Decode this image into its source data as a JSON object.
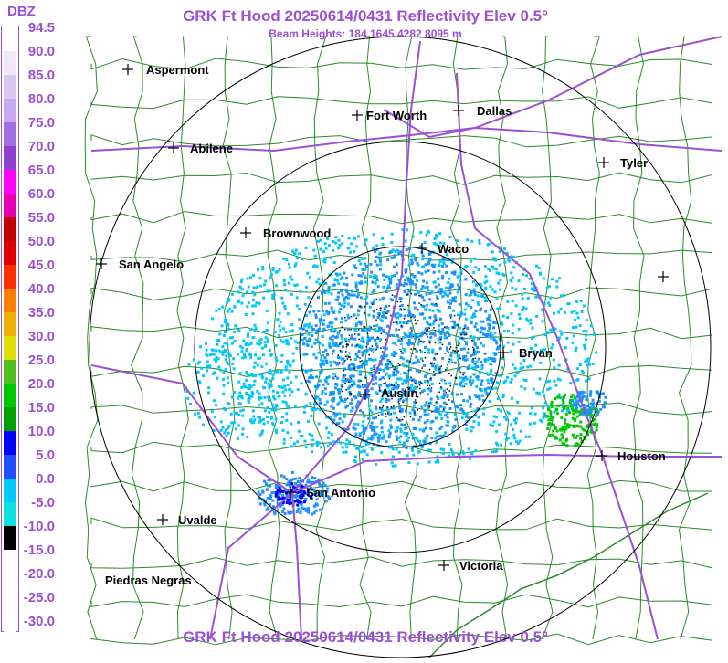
{
  "title": "GRK Ft Hood 20250614/0431 Reflectivity Elev 0.5°",
  "subtitle": "Beam Heights: 184 1645 4282 8095 m",
  "legend": {
    "unit": "DBZ",
    "ticks": [
      "94.5",
      "90.0",
      "85.0",
      "80.0",
      "75.0",
      "70.0",
      "65.0",
      "60.0",
      "55.0",
      "50.0",
      "45.0",
      "40.0",
      "35.0",
      "30.0",
      "25.0",
      "20.0",
      "15.0",
      "10.0",
      "5.0",
      "0.0",
      "-5.0",
      "-10.0",
      "-15.0",
      "-20.0",
      "-25.0",
      "-30.0"
    ],
    "colors": [
      "#ffffff",
      "#f0e8f8",
      "#d8c8f0",
      "#c8a8f0",
      "#a070e0",
      "#9040d0",
      "#ff00ff",
      "#e000b0",
      "#c00000",
      "#e00000",
      "#ff3000",
      "#ff8000",
      "#f0b000",
      "#e0e000",
      "#50c020",
      "#00c800",
      "#00a000",
      "#0000ff",
      "#2050ff",
      "#00c8ff",
      "#10e0e0",
      "#000000",
      "#ffffff",
      "#ffffff",
      "#ffffff",
      "#ffffff"
    ]
  },
  "cities": [
    {
      "name": "Aspermont"
    },
    {
      "name": "Fort Worth"
    },
    {
      "name": "Dallas"
    },
    {
      "name": "Abilene"
    },
    {
      "name": "Tyler"
    },
    {
      "name": "Brownwood"
    },
    {
      "name": "Waco"
    },
    {
      "name": "San Angelo"
    },
    {
      "name": "Bryan"
    },
    {
      "name": "Austin"
    },
    {
      "name": "Houston"
    },
    {
      "name": "San Antonio"
    },
    {
      "name": "Uvalde"
    },
    {
      "name": "Victoria"
    },
    {
      "name": "Piedras Negras"
    },
    {
      "name": ""
    }
  ],
  "colors": {
    "title": "#9b4fd6",
    "highway": "#9b4fd6",
    "county_border": "#2a8a2a",
    "range_ring": "#000000",
    "echo_light": "#00c8ff",
    "echo_mid": "#1e90ff",
    "echo_heavy": "#0000ff",
    "echo_green": "#00c800"
  }
}
